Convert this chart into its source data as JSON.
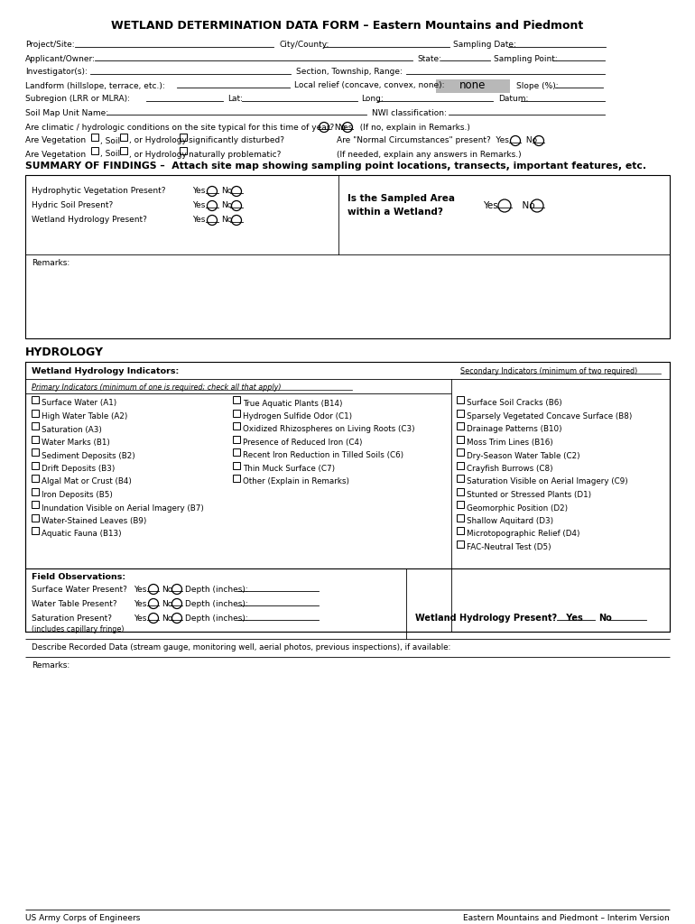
{
  "title": "WETLAND DETERMINATION DATA FORM – Eastern Mountains and Piedmont",
  "bg_color": "#ffffff",
  "summary_header": "SUMMARY OF FINDINGS –  Attach site map showing sampling point locations, transects, important features, etc.",
  "hydrology_header": "HYDROLOGY",
  "footer_left": "US Army Corps of Engineers",
  "footer_right": "Eastern Mountains and Piedmont – Interim Version",
  "pi_left": [
    "Surface Water (A1)",
    "High Water Table (A2)",
    "Saturation (A3)",
    "Water Marks (B1)",
    "Sediment Deposits (B2)",
    "Drift Deposits (B3)",
    "Algal Mat or Crust (B4)",
    "Iron Deposits (B5)",
    "Inundation Visible on Aerial Imagery (B7)",
    "Water-Stained Leaves (B9)",
    "Aquatic Fauna (B13)"
  ],
  "pi_right": [
    "True Aquatic Plants (B14)",
    "Hydrogen Sulfide Odor (C1)",
    "Oxidized Rhizospheres on Living Roots (C3)",
    "Presence of Reduced Iron (C4)",
    "Recent Iron Reduction in Tilled Soils (C6)",
    "Thin Muck Surface (C7)",
    "Other (Explain in Remarks)"
  ],
  "sec_indicators": [
    "Surface Soil Cracks (B6)",
    "Sparsely Vegetated Concave Surface (B8)",
    "Drainage Patterns (B10)",
    "Moss Trim Lines (B16)",
    "Dry-Season Water Table (C2)",
    "Crayfish Burrows (C8)",
    "Saturation Visible on Aerial Imagery (C9)",
    "Stunted or Stressed Plants (D1)",
    "Geomorphic Position (D2)",
    "Shallow Aquitard (D3)",
    "Microtopographic Relief (D4)",
    "FAC-Neutral Test (D5)"
  ]
}
